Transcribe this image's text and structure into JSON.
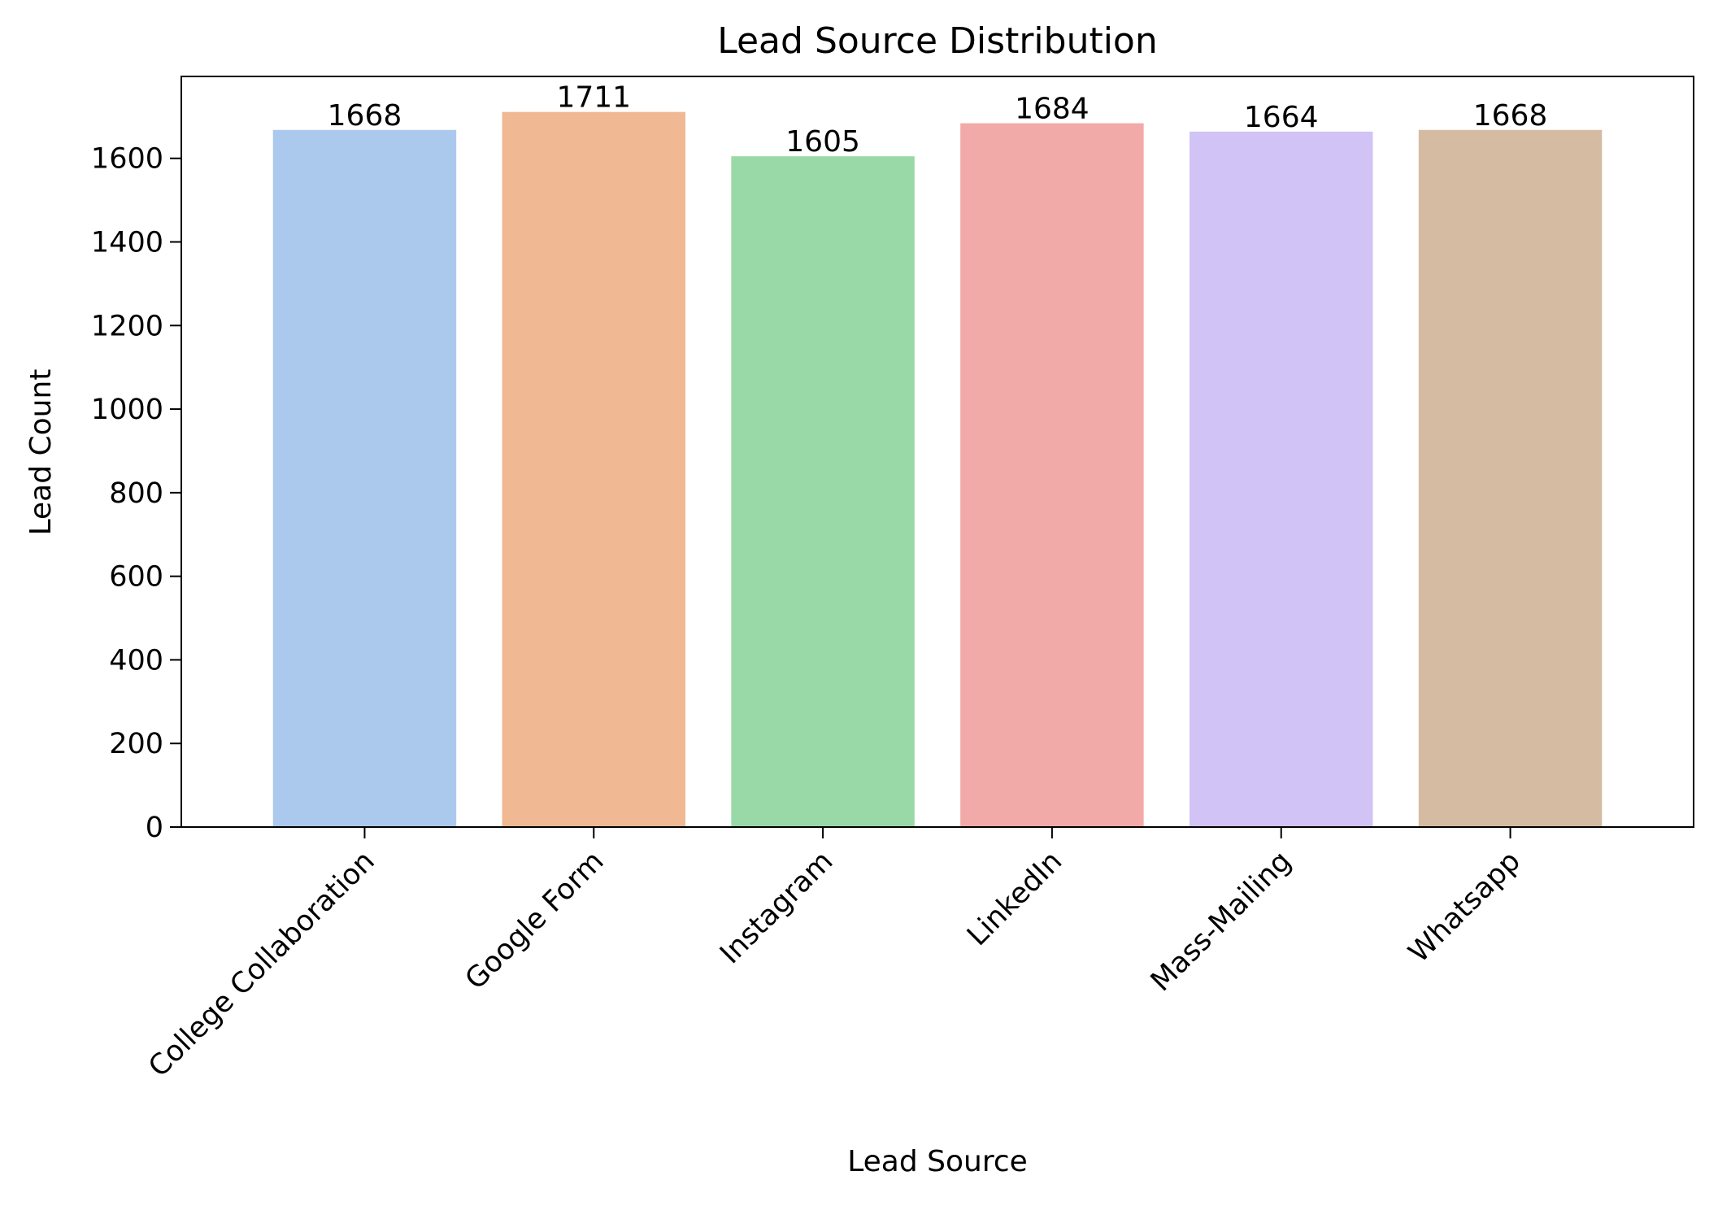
{
  "chart_data": {
    "type": "bar",
    "title": "Lead Source Distribution",
    "xlabel": "Lead Source",
    "ylabel": "Lead Count",
    "categories": [
      "College Collaboration",
      "Google Form",
      "Instagram",
      "LinkedIn",
      "Mass-Mailing",
      "Whatsapp"
    ],
    "values": [
      1668,
      1711,
      1605,
      1684,
      1664,
      1668
    ],
    "value_labels": [
      "1668",
      "1711",
      "1605",
      "1684",
      "1664",
      "1668"
    ],
    "colors": [
      "#abc9ec",
      "#f0b893",
      "#99d9a7",
      "#f2aaa9",
      "#d1c3f6",
      "#d5bba2"
    ],
    "ylim": [
      0,
      1796
    ],
    "yticks": [
      0,
      200,
      400,
      600,
      800,
      1000,
      1200,
      1400,
      1600
    ],
    "ytick_labels": [
      "0",
      "200",
      "400",
      "600",
      "800",
      "1000",
      "1200",
      "1400",
      "1600"
    ],
    "grid": false,
    "legend": "none",
    "xtick_rotation_deg": 45
  }
}
